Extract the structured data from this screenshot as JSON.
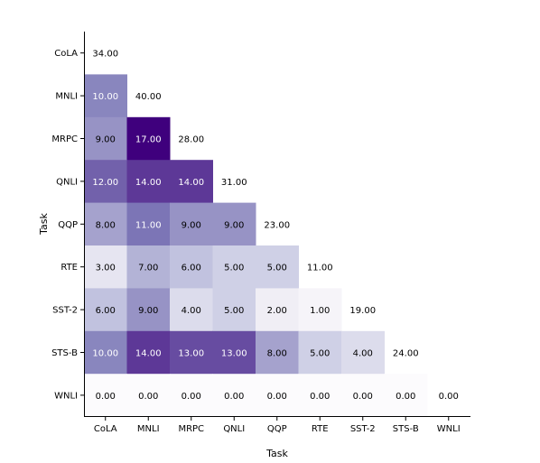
{
  "chart_data": {
    "type": "heatmap",
    "title": "",
    "xlabel": "Task",
    "ylabel": "Task",
    "categories": [
      "CoLA",
      "MNLI",
      "MRPC",
      "QNLI",
      "QQP",
      "RTE",
      "SST-2",
      "STS-B",
      "WNLI"
    ],
    "colormap": "Purples",
    "vmin": 0,
    "vmax": 17,
    "masked": "upper-triangle",
    "matrix": [
      [
        34.0,
        null,
        null,
        null,
        null,
        null,
        null,
        null,
        null
      ],
      [
        10.0,
        40.0,
        null,
        null,
        null,
        null,
        null,
        null,
        null
      ],
      [
        9.0,
        17.0,
        28.0,
        null,
        null,
        null,
        null,
        null,
        null
      ],
      [
        12.0,
        14.0,
        14.0,
        31.0,
        null,
        null,
        null,
        null,
        null
      ],
      [
        8.0,
        11.0,
        9.0,
        9.0,
        23.0,
        null,
        null,
        null,
        null
      ],
      [
        3.0,
        7.0,
        6.0,
        5.0,
        5.0,
        11.0,
        null,
        null,
        null
      ],
      [
        6.0,
        9.0,
        4.0,
        5.0,
        2.0,
        1.0,
        19.0,
        null,
        null
      ],
      [
        10.0,
        14.0,
        13.0,
        13.0,
        8.0,
        5.0,
        4.0,
        24.0,
        null
      ],
      [
        0.0,
        0.0,
        0.0,
        0.0,
        0.0,
        0.0,
        0.0,
        0.0,
        0.0
      ]
    ]
  }
}
